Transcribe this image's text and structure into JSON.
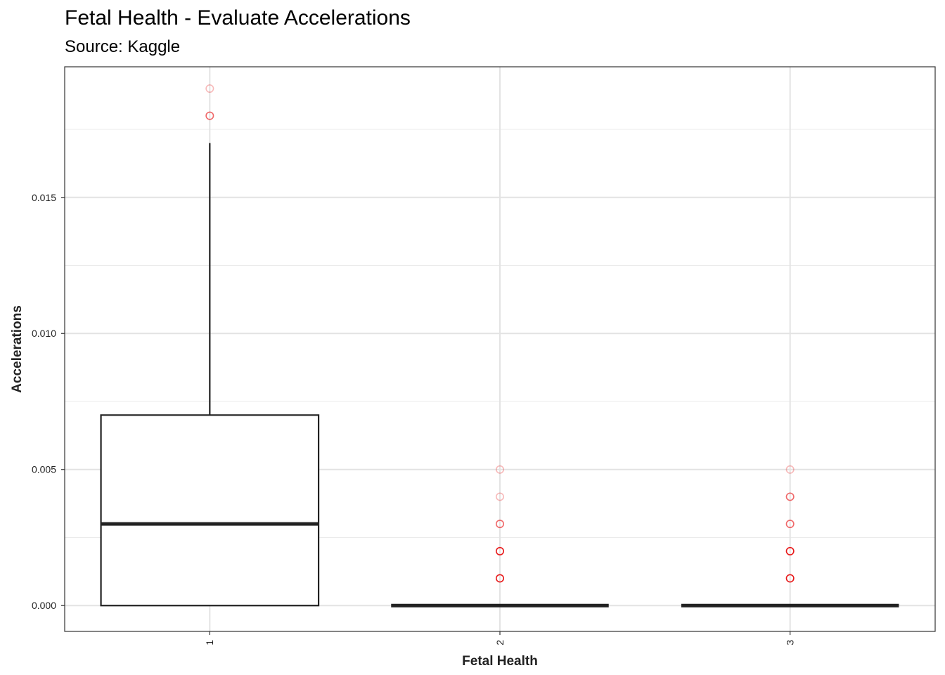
{
  "chart_data": {
    "type": "boxplot",
    "title": "Fetal Health - Evaluate Accelerations",
    "subtitle": "Source: Kaggle",
    "xlabel": "Fetal Health",
    "ylabel": "Accelerations",
    "ylim": [
      -0.00095,
      0.0198
    ],
    "y_ticks": [
      "0.000",
      "0.005",
      "0.010",
      "0.015"
    ],
    "y_tick_values": [
      0.0,
      0.005,
      0.01,
      0.015
    ],
    "categories": [
      "1",
      "2",
      "3"
    ],
    "boxes": [
      {
        "category": "1",
        "whisker_low": 0.0,
        "q1": 0.0,
        "median": 0.003,
        "q3": 0.007,
        "whisker_high": 0.017,
        "outliers": [
          0.018,
          0.019
        ]
      },
      {
        "category": "2",
        "whisker_low": 0.0,
        "q1": 0.0,
        "median": 0.0,
        "q3": 0.0,
        "whisker_high": 0.0,
        "outliers": [
          0.001,
          0.002,
          0.003,
          0.004,
          0.005
        ]
      },
      {
        "category": "3",
        "whisker_low": 0.0,
        "q1": 0.0,
        "median": 0.0,
        "q3": 0.0,
        "whisker_high": 0.0,
        "outliers": [
          0.001,
          0.002,
          0.003,
          0.004,
          0.005
        ]
      }
    ],
    "outlier_color": "#e8191a",
    "grid": true,
    "x_tick_rotation": "vertical"
  }
}
